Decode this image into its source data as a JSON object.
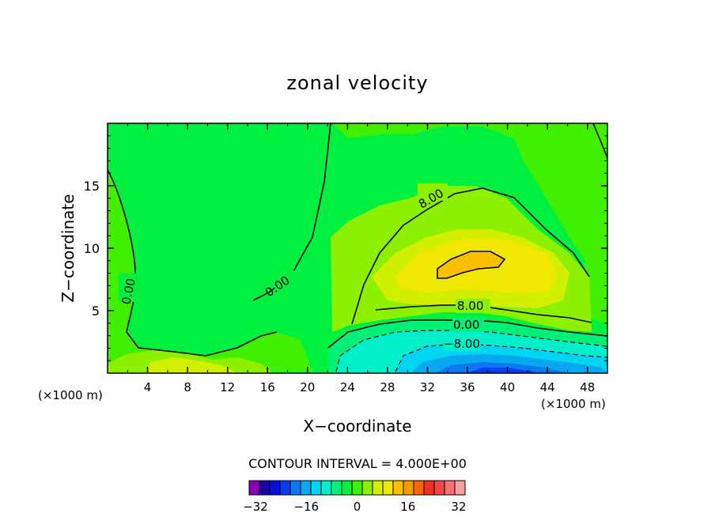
{
  "chart_data": {
    "type": "contour",
    "title": "zonal velocity",
    "xlabel": "X−coordinate",
    "ylabel": "Z−coordinate",
    "x_unit_left": "(×1000 m)",
    "x_unit_right": "(×1000 m)",
    "xlim": [
      0,
      50
    ],
    "ylim": [
      0,
      20
    ],
    "x_ticks": [
      4,
      8,
      12,
      16,
      20,
      24,
      28,
      32,
      36,
      40,
      44,
      48
    ],
    "x_tick_labels": [
      "4",
      "8",
      "12",
      "16",
      "20",
      "24",
      "28",
      "32",
      "36",
      "40",
      "44",
      "48"
    ],
    "y_ticks": [
      5,
      10,
      15
    ],
    "y_tick_labels": [
      "5",
      "10",
      "15"
    ],
    "contour_interval_label": "CONTOUR INTERVAL = 4.000E+00",
    "contour_interval": 4,
    "contour_labels": [
      {
        "text": "0.00",
        "x": 2.0,
        "y": 6.5
      },
      {
        "text": "0.00",
        "x": 17.5,
        "y": 7.0
      },
      {
        "text": "8.00",
        "x": 33.0,
        "y": 14.2
      },
      {
        "text": "8.00",
        "x": 36.0,
        "y": 5.3
      },
      {
        "text": "0.00",
        "x": 36.0,
        "y": 3.8
      },
      {
        "text": "−8.00",
        "x": 36.0,
        "y": 2.5
      }
    ],
    "peak_regions": [
      {
        "name": "positive core",
        "x": 36.5,
        "y": 8.5,
        "max_approx": 20
      },
      {
        "name": "negative core",
        "x": 38,
        "y": 0.5,
        "min_approx": -28
      }
    ],
    "colorbar": {
      "min": -34,
      "max": 34,
      "step": 4,
      "colors": [
        "#8a00b8",
        "#1a00a8",
        "#0a10d8",
        "#0a3cf2",
        "#0a78f0",
        "#08a8f0",
        "#00d4f0",
        "#00f0cc",
        "#00f078",
        "#00f040",
        "#40f000",
        "#8cf000",
        "#d0f000",
        "#f0e800",
        "#f8c000",
        "#f89800",
        "#f86800",
        "#f03020",
        "#f04848",
        "#f87070",
        "#f8a0a0"
      ],
      "tick_values": [
        -32,
        -16,
        0,
        16,
        32
      ],
      "tick_labels": [
        "−32",
        "−16",
        "0",
        "16",
        "32"
      ]
    }
  }
}
